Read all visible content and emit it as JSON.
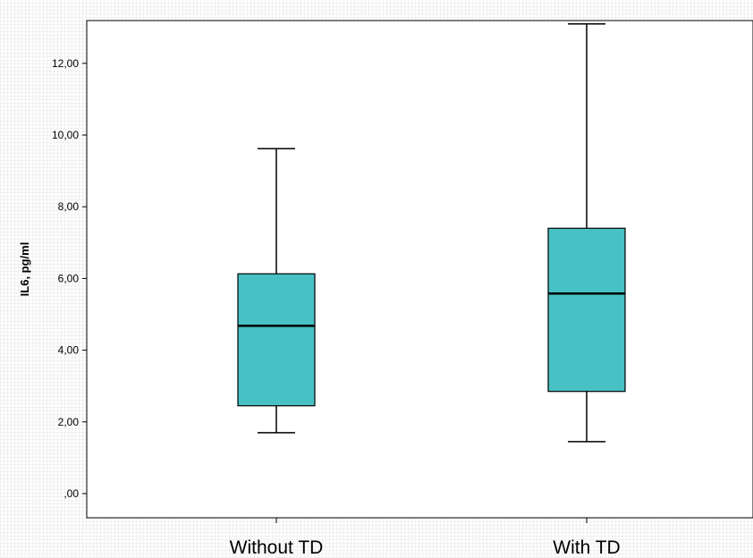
{
  "chart_data": {
    "type": "boxplot",
    "ylabel": "IL6, pg/ml",
    "xlabel": "",
    "ylim": [
      -0.7,
      13.1
    ],
    "yticks": [
      {
        "value": 0,
        "label": ",00"
      },
      {
        "value": 2,
        "label": "2,00"
      },
      {
        "value": 4,
        "label": "4,00"
      },
      {
        "value": 6,
        "label": "6,00"
      },
      {
        "value": 8,
        "label": "8,00"
      },
      {
        "value": 10,
        "label": "10,00"
      },
      {
        "value": 12,
        "label": "12,00"
      }
    ],
    "categories": [
      "Without TD",
      "With TD"
    ],
    "boxes": [
      {
        "category": "Without TD",
        "min": 1.7,
        "q1": 2.45,
        "median": 4.68,
        "q3": 6.13,
        "max": 9.62
      },
      {
        "category": "With TD",
        "min": 1.45,
        "q1": 2.85,
        "median": 5.58,
        "q3": 7.4,
        "max": 13.1
      }
    ],
    "box_color": "#47c1c4",
    "grid": false
  }
}
